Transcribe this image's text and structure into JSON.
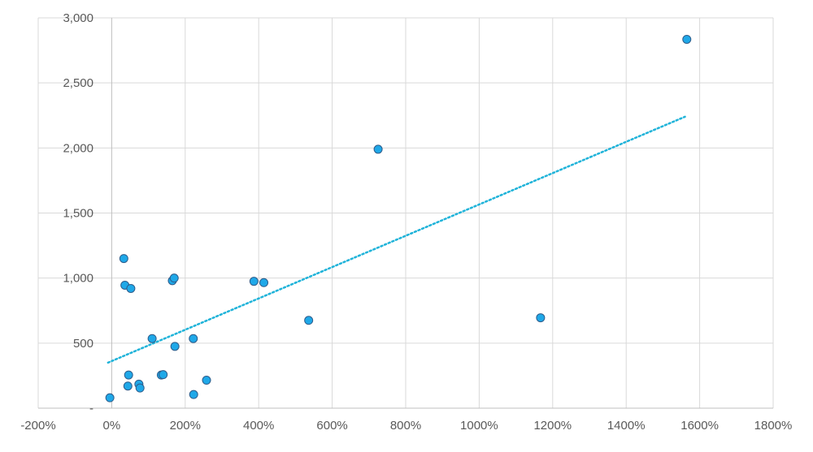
{
  "chart_data": {
    "type": "scatter",
    "title": "",
    "xlabel": "",
    "ylabel": "",
    "xlim": [
      -2.0,
      18.0
    ],
    "ylim": [
      0,
      3000
    ],
    "x_ticks": [
      -2,
      0,
      2,
      4,
      6,
      8,
      10,
      12,
      14,
      16,
      18
    ],
    "x_tick_labels": [
      "-200%",
      "0%",
      "200%",
      "400%",
      "600%",
      "800%",
      "1000%",
      "1200%",
      "1400%",
      "1600%",
      "1800%"
    ],
    "y_ticks": [
      0,
      500,
      1000,
      1500,
      2000,
      2500,
      3000
    ],
    "y_tick_labels": [
      "-",
      "500",
      "1,000",
      "1,500",
      "2,000",
      "2,500",
      "3,000"
    ],
    "grid": true,
    "legend": "none",
    "colors": {
      "point_fill": "#1fa8e8",
      "point_stroke": "#2e5c8a",
      "trendline": "#1fb3d9",
      "grid": "#d9d9d9",
      "axis": "#bfbfbf",
      "tick_text": "#595959"
    },
    "series": [
      {
        "points": [
          {
            "x": -0.05,
            "y": 80
          },
          {
            "x": 0.33,
            "y": 1150
          },
          {
            "x": 0.36,
            "y": 945
          },
          {
            "x": 0.52,
            "y": 920
          },
          {
            "x": 0.44,
            "y": 170
          },
          {
            "x": 0.46,
            "y": 255
          },
          {
            "x": 0.74,
            "y": 185
          },
          {
            "x": 0.77,
            "y": 155
          },
          {
            "x": 1.1,
            "y": 535
          },
          {
            "x": 1.35,
            "y": 255
          },
          {
            "x": 1.4,
            "y": 258
          },
          {
            "x": 1.65,
            "y": 980
          },
          {
            "x": 1.7,
            "y": 1000
          },
          {
            "x": 1.72,
            "y": 475
          },
          {
            "x": 2.22,
            "y": 535
          },
          {
            "x": 2.23,
            "y": 105
          },
          {
            "x": 2.58,
            "y": 215
          },
          {
            "x": 3.87,
            "y": 975
          },
          {
            "x": 4.14,
            "y": 965
          },
          {
            "x": 5.36,
            "y": 675
          },
          {
            "x": 7.25,
            "y": 1990
          },
          {
            "x": 11.67,
            "y": 695
          },
          {
            "x": 15.65,
            "y": 2835
          }
        ]
      }
    ],
    "trendline": {
      "type": "linear",
      "x_start": -0.1,
      "y_start": 350,
      "x_end": 15.6,
      "y_end": 2240
    }
  }
}
